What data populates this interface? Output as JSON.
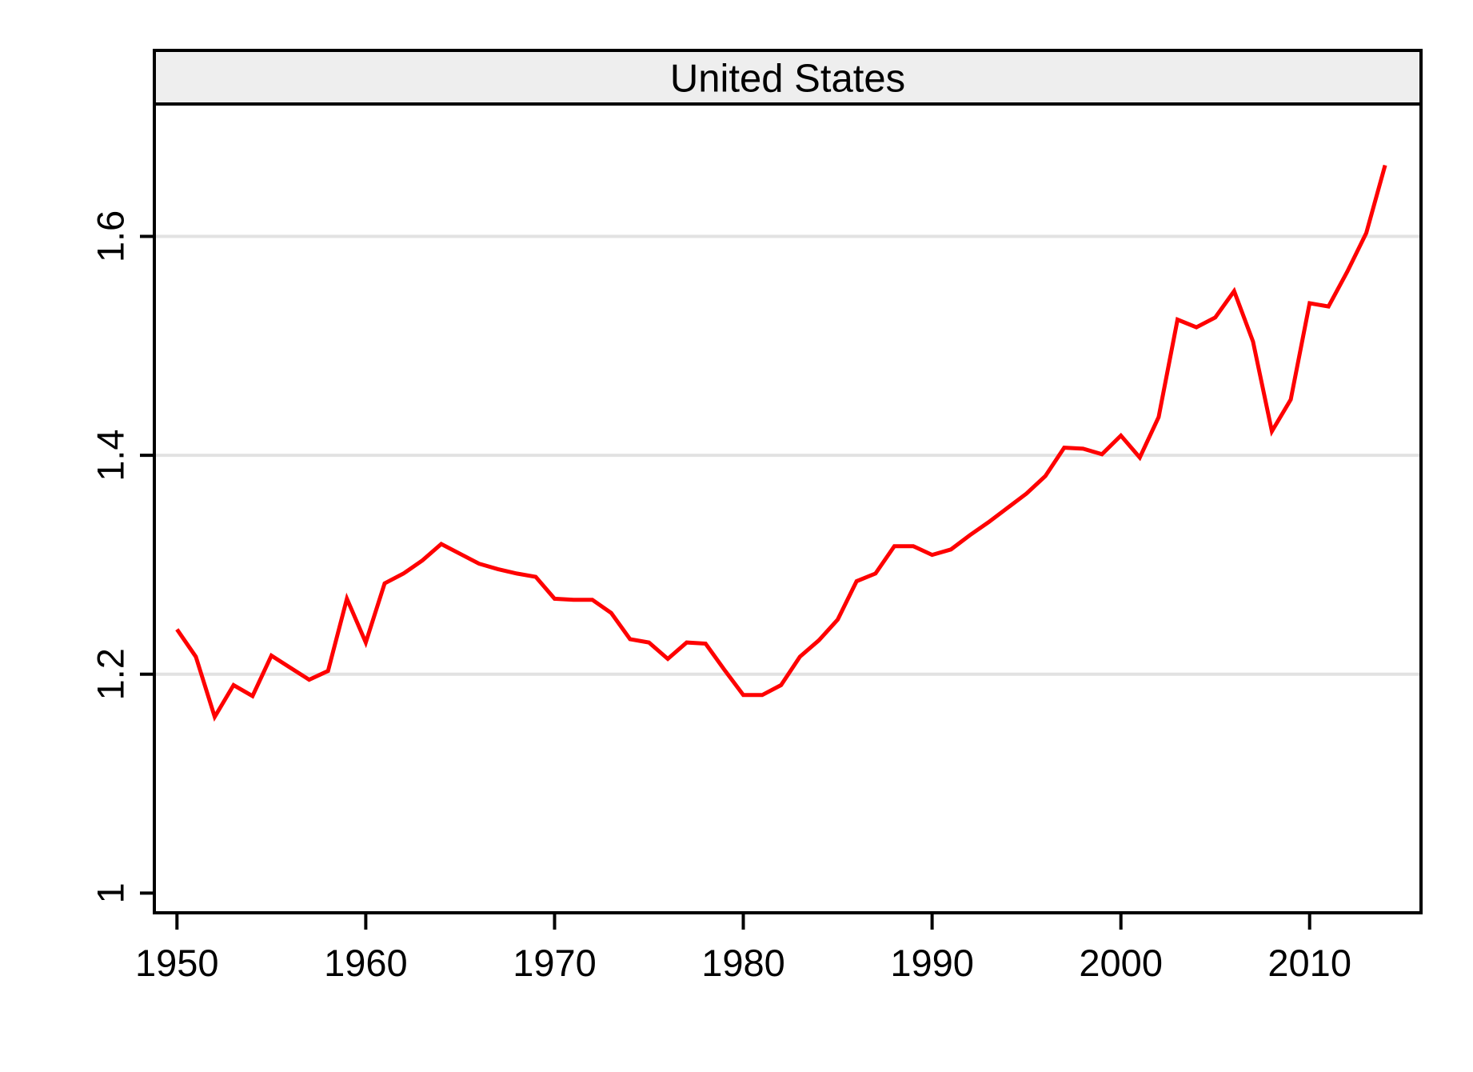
{
  "chart_data": {
    "type": "line",
    "title": "United States",
    "x": [
      1950,
      1951,
      1952,
      1953,
      1954,
      1955,
      1956,
      1957,
      1958,
      1959,
      1960,
      1961,
      1962,
      1963,
      1964,
      1965,
      1966,
      1967,
      1968,
      1969,
      1970,
      1971,
      1972,
      1973,
      1974,
      1975,
      1976,
      1977,
      1978,
      1979,
      1980,
      1981,
      1982,
      1983,
      1984,
      1985,
      1986,
      1987,
      1988,
      1989,
      1990,
      1991,
      1992,
      1993,
      1994,
      1995,
      1996,
      1997,
      1998,
      1999,
      2000,
      2001,
      2002,
      2003,
      2004,
      2005,
      2006,
      2007,
      2008,
      2009,
      2010,
      2011,
      2012,
      2013,
      2014
    ],
    "series": [
      {
        "name": "United States",
        "values": [
          1.241,
          1.216,
          1.161,
          1.19,
          1.18,
          1.217,
          1.206,
          1.195,
          1.203,
          1.269,
          1.229,
          1.283,
          1.292,
          1.304,
          1.319,
          1.31,
          1.301,
          1.296,
          1.292,
          1.289,
          1.269,
          1.268,
          1.268,
          1.256,
          1.232,
          1.229,
          1.214,
          1.229,
          1.228,
          1.204,
          1.181,
          1.181,
          1.19,
          1.216,
          1.231,
          1.25,
          1.285,
          1.292,
          1.317,
          1.317,
          1.309,
          1.314,
          1.327,
          1.339,
          1.352,
          1.365,
          1.381,
          1.407,
          1.406,
          1.401,
          1.418,
          1.398,
          1.435,
          1.524,
          1.517,
          1.526,
          1.55,
          1.504,
          1.422,
          1.451,
          1.539,
          1.536,
          1.568,
          1.603,
          1.665
        ]
      }
    ],
    "xlabel": "",
    "ylabel": "",
    "x_ticks": [
      {
        "value": 1950,
        "label": "1950"
      },
      {
        "value": 1960,
        "label": "1960"
      },
      {
        "value": 1970,
        "label": "1970"
      },
      {
        "value": 1980,
        "label": "1980"
      },
      {
        "value": 1990,
        "label": "1990"
      },
      {
        "value": 2000,
        "label": "2000"
      },
      {
        "value": 2010,
        "label": "2010"
      }
    ],
    "y_ticks": [
      {
        "value": 1.0,
        "label": "1"
      },
      {
        "value": 1.2,
        "label": "1.2"
      },
      {
        "value": 1.4,
        "label": "1.4"
      },
      {
        "value": 1.6,
        "label": "1.6"
      }
    ],
    "y_gridlines": [
      1.2,
      1.4,
      1.6
    ],
    "xlim": [
      1948.8,
      2015.9
    ],
    "ylim": [
      0.982,
      1.721
    ],
    "grid": "horizontal-only",
    "legend_position": "none",
    "colors": {
      "line": "#fe0000",
      "grid": "#e2e2e2",
      "frame": "#000000",
      "title_band_fill": "#eeeeee",
      "text": "#000000",
      "background": "#ffffff"
    }
  }
}
